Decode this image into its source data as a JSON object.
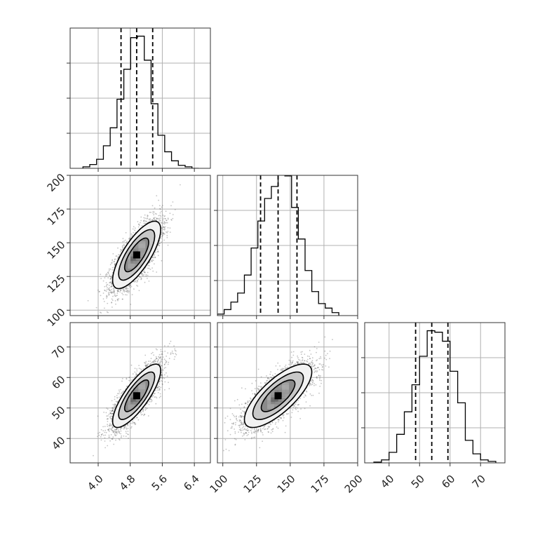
{
  "chart_data": {
    "type": "corner",
    "grid": true,
    "variables": [
      {
        "range": [
          3.3,
          6.8
        ],
        "ticks": [
          4.0,
          4.8,
          5.6,
          6.4
        ],
        "tick_labels": [
          "4.0",
          "4.8",
          "5.6",
          "6.4"
        ],
        "quantiles": [
          4.57,
          4.96,
          5.36
        ]
      },
      {
        "range": [
          96,
          200
        ],
        "ticks": [
          100,
          125,
          150,
          175,
          200
        ],
        "tick_labels": [
          "100",
          "125",
          "150",
          "175",
          "200"
        ],
        "quantiles": [
          128,
          141,
          155
        ]
      },
      {
        "range": [
          32,
          78
        ],
        "ticks": [
          40,
          50,
          60,
          70
        ],
        "tick_labels": [
          "40",
          "50",
          "60",
          "70"
        ],
        "quantiles": [
          48.7,
          54.0,
          59.3
        ]
      }
    ],
    "histograms": [
      {
        "bins": [
          3.62,
          3.79,
          3.96,
          4.13,
          4.3,
          4.47,
          4.64,
          4.81,
          4.98,
          5.15,
          5.32,
          5.49,
          5.66,
          5.83,
          6.0,
          6.17,
          6.34,
          6.51
        ],
        "counts": [
          0.01,
          0.025,
          0.06,
          0.15,
          0.27,
          0.46,
          0.66,
          0.87,
          0.88,
          0.72,
          0.43,
          0.22,
          0.11,
          0.05,
          0.02,
          0.01,
          0.0
        ]
      },
      {
        "bins": [
          96,
          101,
          106,
          111,
          116,
          121,
          126,
          131,
          136,
          141,
          146,
          151,
          156,
          161,
          166,
          171,
          176,
          181,
          186
        ],
        "counts": [
          0.01,
          0.04,
          0.09,
          0.15,
          0.27,
          0.45,
          0.63,
          0.78,
          0.86,
          0.94,
          0.93,
          0.72,
          0.51,
          0.3,
          0.16,
          0.08,
          0.05,
          0.02
        ]
      },
      {
        "bins": [
          35,
          37.5,
          40,
          42.5,
          45,
          47.5,
          50,
          52.5,
          55,
          57.5,
          60,
          62.5,
          65,
          67.5,
          70,
          72.5,
          75
        ],
        "counts": [
          0.005,
          0.02,
          0.07,
          0.19,
          0.34,
          0.52,
          0.71,
          0.88,
          0.87,
          0.81,
          0.61,
          0.4,
          0.15,
          0.06,
          0.02,
          0.01
        ]
      }
    ],
    "pairs": [
      {
        "x_var": 0,
        "y_var": 1,
        "mean": [
          4.96,
          141
        ],
        "sd": [
          0.3,
          12.5
        ],
        "corr": 0.75
      },
      {
        "x_var": 0,
        "y_var": 2,
        "mean": [
          4.96,
          54
        ],
        "sd": [
          0.3,
          5.2
        ],
        "corr": 0.8
      },
      {
        "x_var": 1,
        "y_var": 2,
        "mean": [
          141,
          54
        ],
        "sd": [
          12.5,
          5.2
        ],
        "corr": 0.75
      }
    ],
    "contour_levels": [
      0.5,
      1.0,
      1.5,
      2.0
    ]
  }
}
